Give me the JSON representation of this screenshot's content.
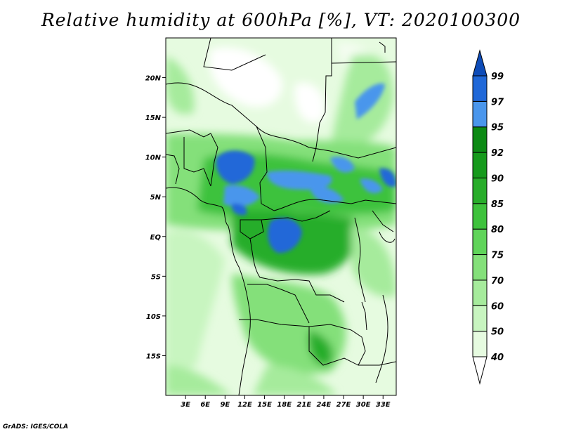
{
  "title": "Relative humidity at 600hPa [%], VT: 2020100300",
  "credit": "GrADS: IGES/COLA",
  "map": {
    "lon_range": [
      0,
      35
    ],
    "lat_range": [
      -20,
      25
    ],
    "lon_ticks": [
      {
        "value": 3,
        "label": "3E"
      },
      {
        "value": 6,
        "label": "6E"
      },
      {
        "value": 9,
        "label": "9E"
      },
      {
        "value": 12,
        "label": "12E"
      },
      {
        "value": 15,
        "label": "15E"
      },
      {
        "value": 18,
        "label": "18E"
      },
      {
        "value": 21,
        "label": "21E"
      },
      {
        "value": 24,
        "label": "24E"
      },
      {
        "value": 27,
        "label": "27E"
      },
      {
        "value": 30,
        "label": "30E"
      },
      {
        "value": 33,
        "label": "33E"
      }
    ],
    "lat_ticks": [
      {
        "value": 20,
        "label": "20N"
      },
      {
        "value": 15,
        "label": "15N"
      },
      {
        "value": 10,
        "label": "10N"
      },
      {
        "value": 5,
        "label": "5N"
      },
      {
        "value": 0,
        "label": "EQ"
      },
      {
        "value": -5,
        "label": "5S"
      },
      {
        "value": -10,
        "label": "10S"
      },
      {
        "value": -15,
        "label": "15S"
      }
    ]
  },
  "colorbar": {
    "levels": [
      "40",
      "50",
      "60",
      "70",
      "75",
      "80",
      "85",
      "90",
      "92",
      "95",
      "97",
      "99"
    ],
    "colors": [
      "#ffffff",
      "#e6fbe0",
      "#c8f5c0",
      "#a6eb9c",
      "#84e07a",
      "#60d45a",
      "#3ec23c",
      "#28ad2a",
      "#169a1c",
      "#0c8a14",
      "#4a96ec",
      "#2068d8",
      "#0e4cb8"
    ]
  }
}
